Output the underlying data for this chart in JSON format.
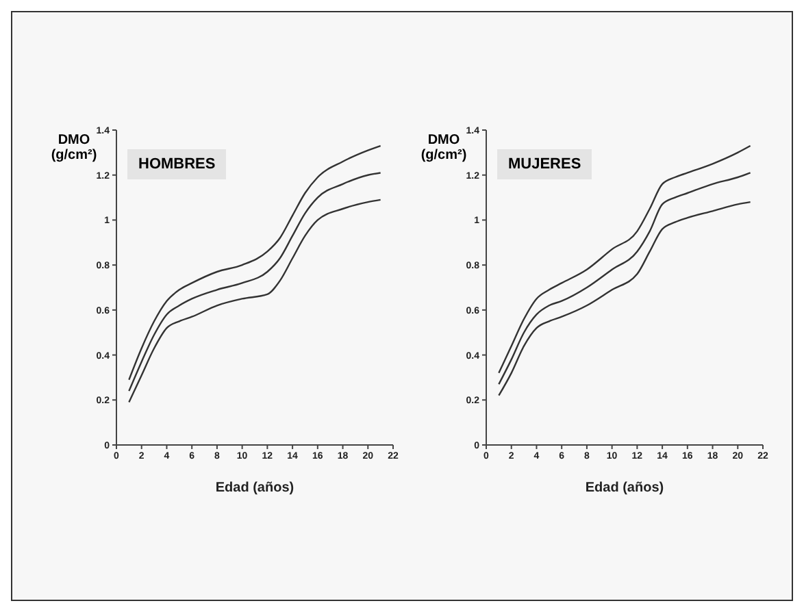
{
  "chart_data": [
    {
      "type": "line",
      "title": "HOMBRES",
      "xlabel": "Edad (años)",
      "ylabel": "DMO (g/cm²)",
      "x": [
        1,
        2,
        3,
        4,
        5,
        6,
        8,
        10,
        12,
        13,
        14,
        15,
        16,
        18,
        20,
        21
      ],
      "series": [
        {
          "color": "#333333",
          "values": [
            0.29,
            0.43,
            0.55,
            0.64,
            0.69,
            0.72,
            0.77,
            0.8,
            0.86,
            0.92,
            1.02,
            1.12,
            1.19,
            1.26,
            1.31,
            1.33
          ]
        },
        {
          "color": "#333333",
          "values": [
            0.24,
            0.37,
            0.49,
            0.58,
            0.62,
            0.65,
            0.69,
            0.72,
            0.77,
            0.83,
            0.93,
            1.03,
            1.1,
            1.16,
            1.2,
            1.21
          ]
        },
        {
          "color": "#333333",
          "values": [
            0.19,
            0.31,
            0.43,
            0.52,
            0.55,
            0.57,
            0.62,
            0.65,
            0.67,
            0.73,
            0.83,
            0.93,
            1.0,
            1.05,
            1.08,
            1.09
          ]
        }
      ],
      "xlim": [
        0,
        22
      ],
      "xticks": [
        0,
        2,
        4,
        6,
        8,
        10,
        12,
        14,
        16,
        18,
        20,
        22
      ],
      "ylim": [
        0,
        1.4
      ],
      "yticks": [
        0,
        0.2,
        0.4,
        0.6,
        0.8,
        1,
        1.2,
        1.4
      ],
      "grid": false,
      "legend": false,
      "marker": "none",
      "line_style": "solid"
    },
    {
      "type": "line",
      "title": "MUJERES",
      "xlabel": "Edad (años)",
      "ylabel": "DMO (g/cm²)",
      "x": [
        1,
        2,
        3,
        4,
        5,
        6,
        8,
        10,
        12,
        13,
        14,
        15,
        16,
        18,
        20,
        21
      ],
      "series": [
        {
          "color": "#333333",
          "values": [
            0.32,
            0.44,
            0.56,
            0.65,
            0.69,
            0.72,
            0.78,
            0.87,
            0.95,
            1.05,
            1.16,
            1.19,
            1.21,
            1.25,
            1.3,
            1.33
          ]
        },
        {
          "color": "#333333",
          "values": [
            0.27,
            0.38,
            0.5,
            0.58,
            0.62,
            0.64,
            0.7,
            0.78,
            0.86,
            0.95,
            1.07,
            1.1,
            1.12,
            1.16,
            1.19,
            1.21
          ]
        },
        {
          "color": "#333333",
          "values": [
            0.22,
            0.32,
            0.44,
            0.52,
            0.55,
            0.57,
            0.62,
            0.69,
            0.76,
            0.86,
            0.96,
            0.99,
            1.01,
            1.04,
            1.07,
            1.08
          ]
        }
      ],
      "xlim": [
        0,
        22
      ],
      "xticks": [
        0,
        2,
        4,
        6,
        8,
        10,
        12,
        14,
        16,
        18,
        20,
        22
      ],
      "ylim": [
        0,
        1.4
      ],
      "yticks": [
        0,
        0.2,
        0.4,
        0.6,
        0.8,
        1,
        1.2,
        1.4
      ],
      "grid": false,
      "legend": false,
      "marker": "none",
      "line_style": "solid"
    }
  ]
}
